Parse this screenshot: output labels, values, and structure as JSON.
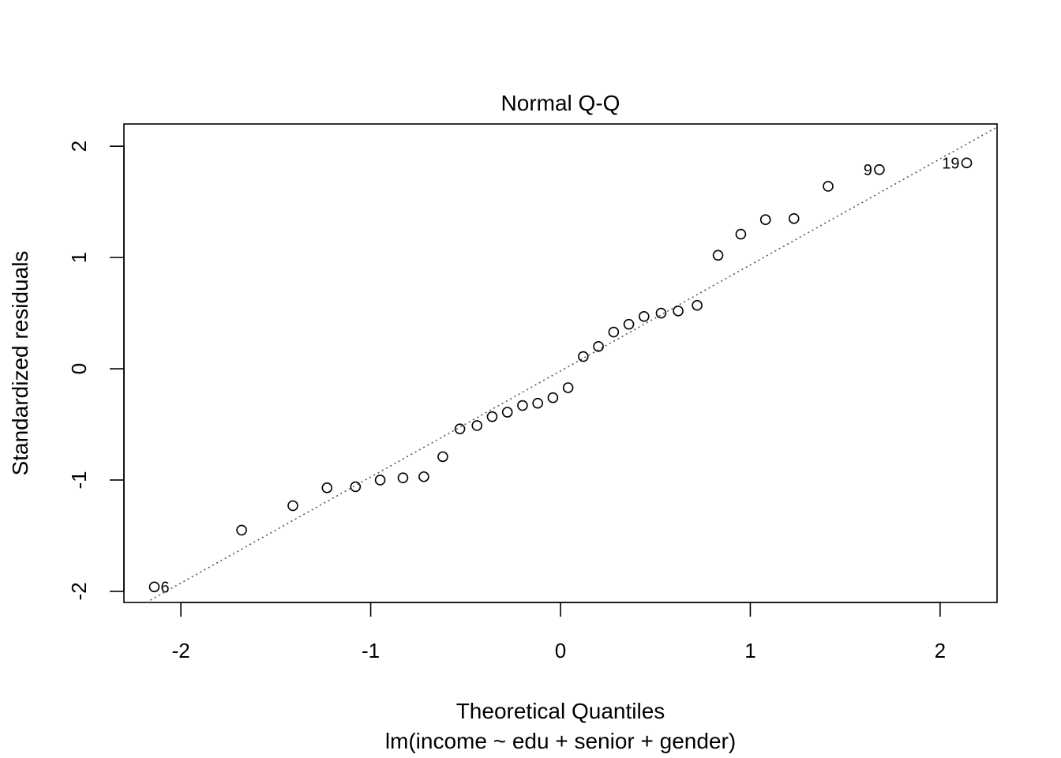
{
  "chart_data": {
    "type": "scatter",
    "title": "Normal Q-Q",
    "xlabel": "Theoretical Quantiles",
    "subtitle": "lm(income ~ edu + senior + gender)",
    "ylabel": "Standardized residuals",
    "xlim": [
      -2.3,
      2.3
    ],
    "ylim": [
      -2.1,
      2.2
    ],
    "xticks": [
      -2,
      -1,
      0,
      1,
      2
    ],
    "xtick_labels": [
      "-2",
      "-1",
      "0",
      "1",
      "2"
    ],
    "yticks": [
      -2,
      -1,
      0,
      1,
      2
    ],
    "ytick_labels": [
      "-2",
      "-1",
      "0",
      "1",
      "2"
    ],
    "grid": false,
    "reference_line": {
      "style": "dotted",
      "color": "#555555",
      "slope": 0.953,
      "intercept": -0.02
    },
    "points": [
      {
        "x": -2.14,
        "y": -1.96,
        "label": "6"
      },
      {
        "x": -1.68,
        "y": -1.45
      },
      {
        "x": -1.41,
        "y": -1.23
      },
      {
        "x": -1.23,
        "y": -1.07
      },
      {
        "x": -1.08,
        "y": -1.06
      },
      {
        "x": -0.95,
        "y": -1.0
      },
      {
        "x": -0.83,
        "y": -0.98
      },
      {
        "x": -0.72,
        "y": -0.97
      },
      {
        "x": -0.62,
        "y": -0.79
      },
      {
        "x": -0.53,
        "y": -0.54
      },
      {
        "x": -0.44,
        "y": -0.51
      },
      {
        "x": -0.36,
        "y": -0.43
      },
      {
        "x": -0.28,
        "y": -0.39
      },
      {
        "x": -0.2,
        "y": -0.33
      },
      {
        "x": -0.12,
        "y": -0.31
      },
      {
        "x": -0.04,
        "y": -0.26
      },
      {
        "x": 0.04,
        "y": -0.17
      },
      {
        "x": 0.12,
        "y": 0.11
      },
      {
        "x": 0.2,
        "y": 0.2
      },
      {
        "x": 0.28,
        "y": 0.33
      },
      {
        "x": 0.36,
        "y": 0.4
      },
      {
        "x": 0.44,
        "y": 0.47
      },
      {
        "x": 0.53,
        "y": 0.5
      },
      {
        "x": 0.62,
        "y": 0.52
      },
      {
        "x": 0.72,
        "y": 0.57
      },
      {
        "x": 0.83,
        "y": 1.02
      },
      {
        "x": 0.95,
        "y": 1.21
      },
      {
        "x": 1.08,
        "y": 1.34
      },
      {
        "x": 1.23,
        "y": 1.35
      },
      {
        "x": 1.41,
        "y": 1.64
      },
      {
        "x": 1.68,
        "y": 1.79,
        "label": "9"
      },
      {
        "x": 2.14,
        "y": 1.85,
        "label": "19"
      }
    ]
  }
}
